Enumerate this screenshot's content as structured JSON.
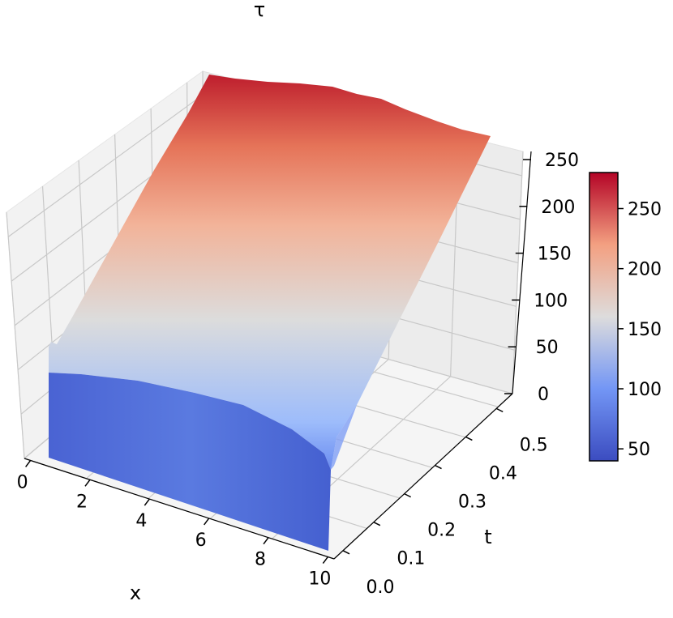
{
  "chart_data": {
    "type": "surface3d",
    "title": "τ",
    "xlabel": "x",
    "ylabel": "t",
    "zlabel": "",
    "x_ticks": [
      "0",
      "2",
      "4",
      "6",
      "8",
      "10"
    ],
    "t_ticks": [
      "0.0",
      "0.1",
      "0.2",
      "0.3",
      "0.4",
      "0.5"
    ],
    "z_ticks": [
      "0",
      "50",
      "100",
      "150",
      "200",
      "250"
    ],
    "xlim": [
      0,
      10
    ],
    "tlim": [
      0,
      0.55
    ],
    "zlim": [
      0,
      250
    ],
    "colormap": "coolwarm",
    "colorbar": {
      "ticks": [
        "50",
        "100",
        "150",
        "200",
        "250"
      ],
      "range": [
        40,
        280
      ]
    },
    "surface_summary": {
      "x": [
        0,
        2,
        4,
        6,
        8,
        10
      ],
      "tau_at_t_0": [
        60,
        62,
        58,
        55,
        52,
        45
      ],
      "tau_at_t_max": [
        270,
        272,
        278,
        275,
        262,
        255
      ],
      "shape": "step up to ~60 at t=0, then roughly linear increase with t to ~270 at t=0.55"
    },
    "colors": {
      "cold": "#3b4cc0",
      "mid": "#dddddd",
      "hot": "#b40426",
      "grid": "#c8c8c8",
      "pane": "#f2f2f2"
    }
  }
}
